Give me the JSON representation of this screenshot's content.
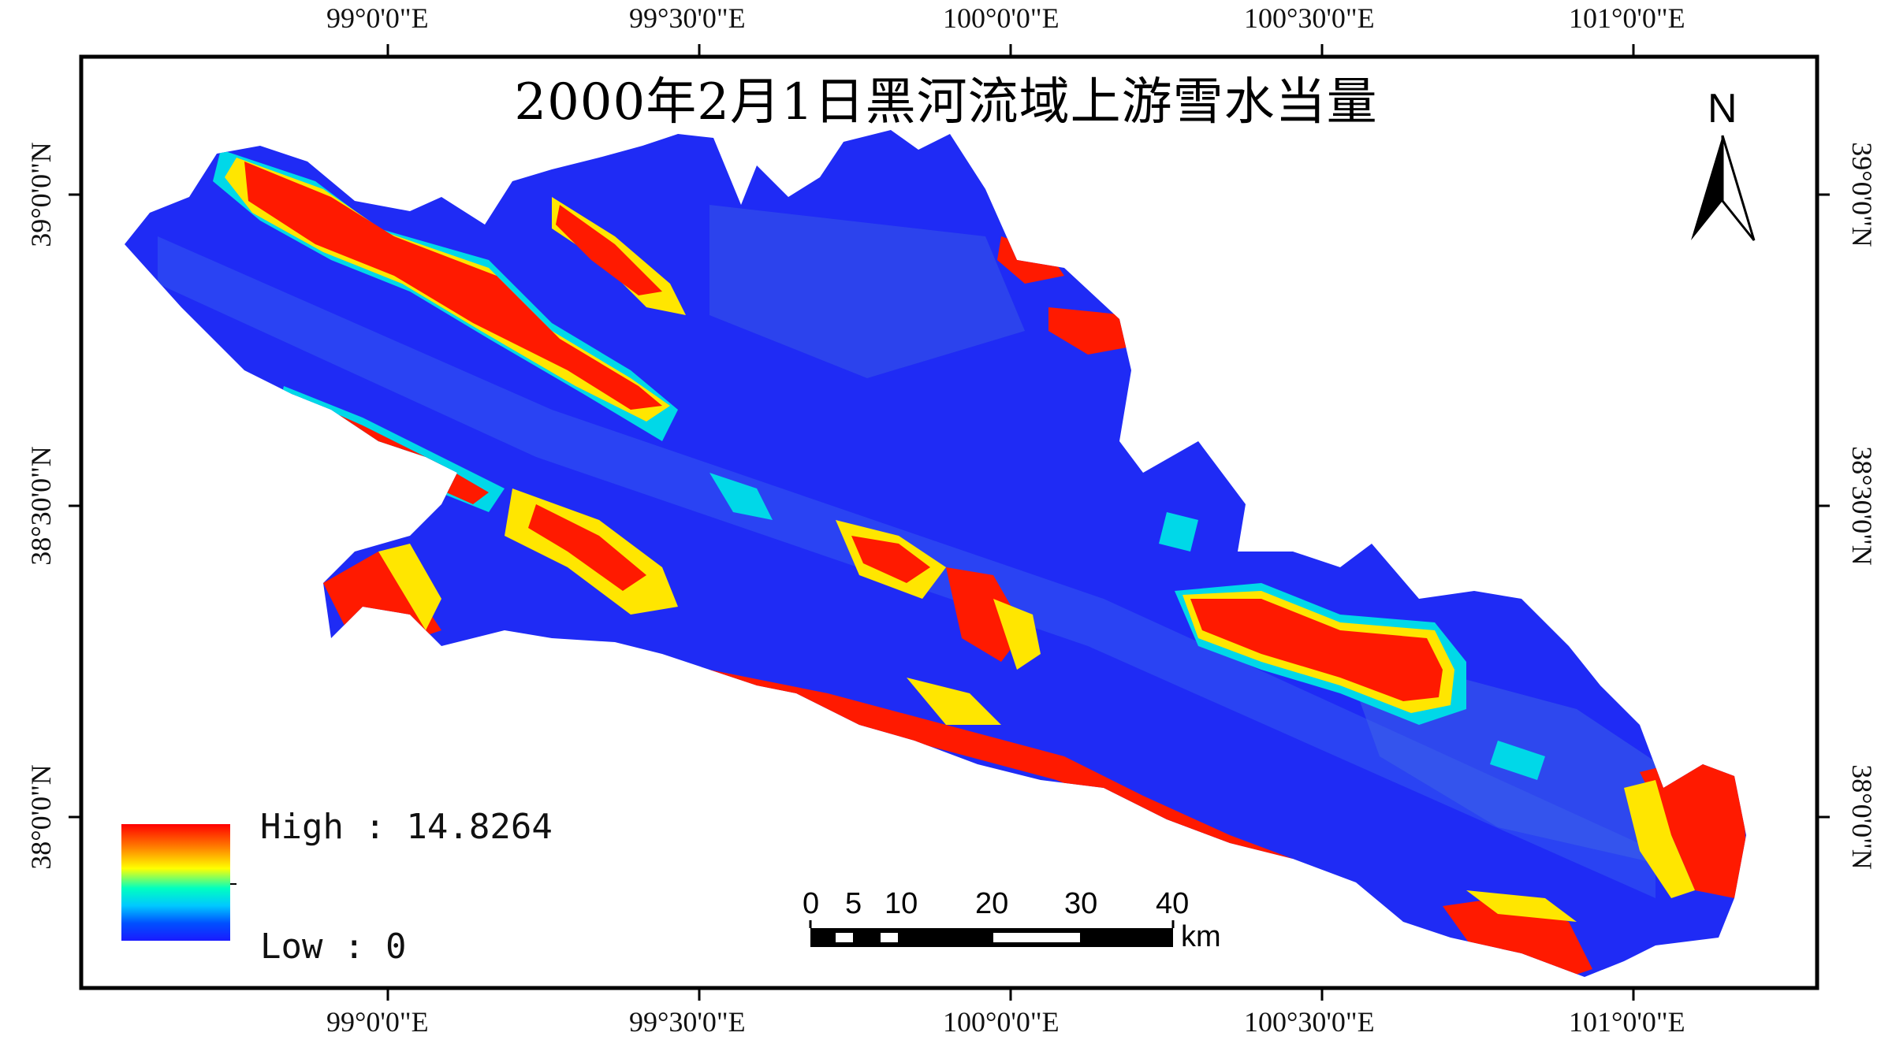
{
  "title": "2000年2月1日黑河流域上游雪水当量",
  "north_arrow": {
    "label": "N"
  },
  "lon_ticks": [
    "99°0'0\"E",
    "99°30'0\"E",
    "100°0'0\"E",
    "100°30'0\"E",
    "101°0'0\"E"
  ],
  "lat_ticks": [
    "39°0'0\"N",
    "38°30'0\"N",
    "38°0'0\"N"
  ],
  "legend": {
    "high_label": "High : 14.8264",
    "low_label": "Low : 0",
    "colors": [
      "#ff0000",
      "#ff8000",
      "#ffff00",
      "#00ffc0",
      "#00c8ff",
      "#0050ff",
      "#1a1aff"
    ]
  },
  "scale_bar": {
    "labels": [
      "0",
      "5",
      "10",
      "20",
      "30",
      "40"
    ],
    "unit": "km"
  },
  "colors": {
    "basin_base": "#1f2bf5",
    "snow_high": "#ff0000",
    "snow_mid": "#ffe600",
    "snow_low": "#00d8e8",
    "frame": "#000000"
  }
}
